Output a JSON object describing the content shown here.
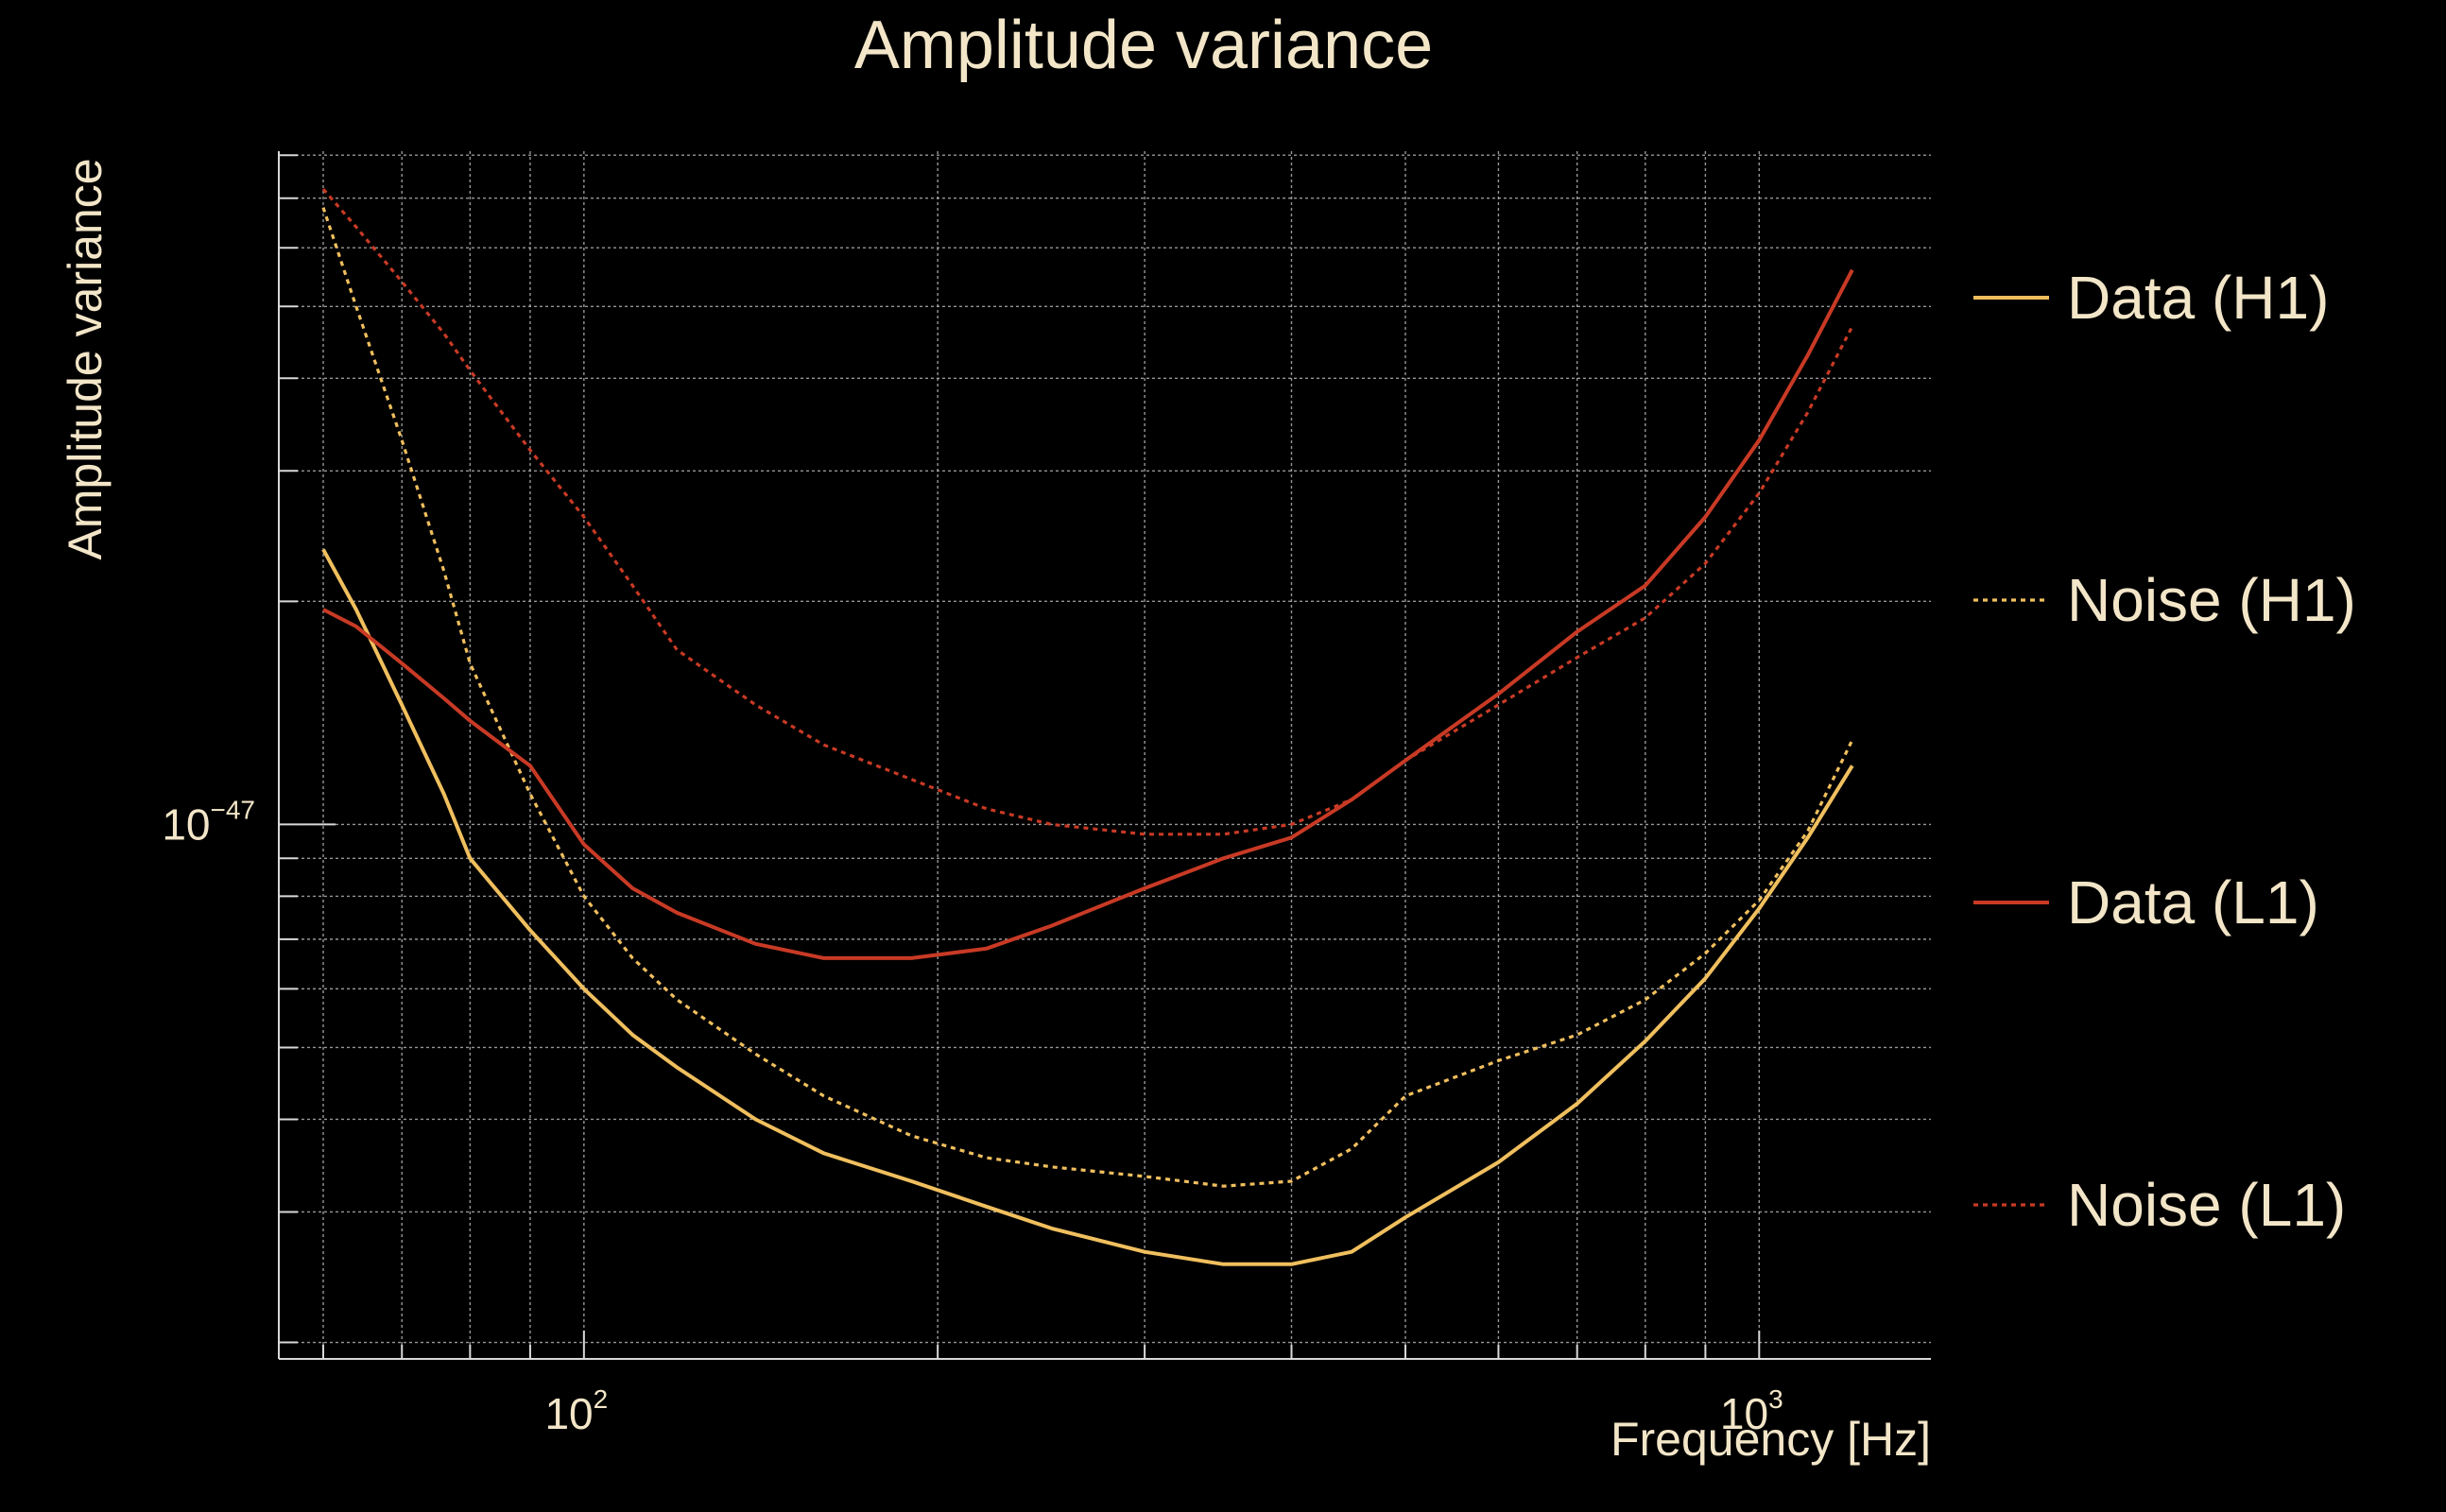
{
  "chart_data": {
    "type": "line",
    "title": "Amplitude variance",
    "xlabel": "Frequency [Hz]",
    "ylabel": "Amplitude variance",
    "xscale": "log",
    "yscale": "log",
    "xlim": [
      55,
      1400
    ],
    "ylim": [
      1.9e-48,
      8.1e-47
    ],
    "grid": true,
    "legend_position": "right",
    "x_ticks": [
      {
        "value": 100,
        "base": "10",
        "exp": "2"
      },
      {
        "value": 1000,
        "base": "10",
        "exp": "3"
      }
    ],
    "y_ticks": [
      {
        "value": 1e-47,
        "base": "10",
        "exp": "−47"
      }
    ],
    "x": [
      60,
      64,
      70,
      76,
      80,
      90,
      100,
      110,
      120,
      140,
      160,
      190,
      220,
      250,
      300,
      350,
      400,
      450,
      500,
      600,
      700,
      800,
      900,
      1000,
      1100,
      1200
    ],
    "series": [
      {
        "name": "Data (H1)",
        "color": "#f0bf5e",
        "style": "solid",
        "values": [
          2.35e-47,
          1.95e-47,
          1.45e-47,
          1.1e-47,
          9e-48,
          7.2e-48,
          6e-48,
          5.2e-48,
          4.7e-48,
          4e-48,
          3.6e-48,
          3.3e-48,
          3.05e-48,
          2.85e-48,
          2.65e-48,
          2.55e-48,
          2.55e-48,
          2.65e-48,
          2.95e-48,
          3.5e-48,
          4.2e-48,
          5.1e-48,
          6.2e-48,
          7.7e-48,
          9.6e-48,
          1.2e-47
        ]
      },
      {
        "name": "Noise (H1)",
        "color": "#f0bf5e",
        "style": "dotted",
        "values": [
          6.8e-47,
          5e-47,
          3.3e-47,
          2.2e-47,
          1.65e-47,
          1.1e-47,
          8e-48,
          6.6e-48,
          5.8e-48,
          4.9e-48,
          4.3e-48,
          3.8e-48,
          3.55e-48,
          3.45e-48,
          3.35e-48,
          3.25e-48,
          3.3e-48,
          3.65e-48,
          4.3e-48,
          4.8e-48,
          5.2e-48,
          5.8e-48,
          6.7e-48,
          7.9e-48,
          9.8e-48,
          1.3e-47
        ]
      },
      {
        "name": "Data (L1)",
        "color": "#c83a25",
        "style": "solid",
        "values": [
          1.95e-47,
          1.85e-47,
          1.65e-47,
          1.48e-47,
          1.38e-47,
          1.2e-47,
          9.4e-48,
          8.2e-48,
          7.6e-48,
          6.9e-48,
          6.6e-48,
          6.6e-48,
          6.8e-48,
          7.3e-48,
          8.2e-48,
          9e-48,
          9.6e-48,
          1.08e-47,
          1.22e-47,
          1.5e-47,
          1.82e-47,
          2.1e-47,
          2.6e-47,
          3.3e-47,
          4.3e-47,
          5.6e-47
        ]
      },
      {
        "name": "Noise (L1)",
        "color": "#c83a25",
        "style": "dotted",
        "values": [
          7.2e-47,
          6.4e-47,
          5.4e-47,
          4.6e-47,
          4.1e-47,
          3.2e-47,
          2.6e-47,
          2.1e-47,
          1.72e-47,
          1.45e-47,
          1.28e-47,
          1.15e-47,
          1.05e-47,
          1e-47,
          9.7e-48,
          9.7e-48,
          1e-47,
          1.08e-47,
          1.22e-47,
          1.45e-47,
          1.68e-47,
          1.9e-47,
          2.25e-47,
          2.8e-47,
          3.6e-47,
          4.7e-47
        ]
      }
    ]
  }
}
